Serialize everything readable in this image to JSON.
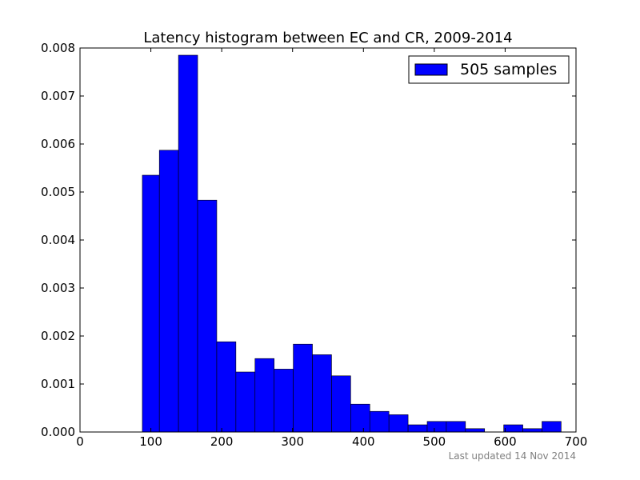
{
  "chart_data": {
    "type": "bar",
    "title": "Latency histogram between EC and CR, 2009-2014",
    "xlabel": "",
    "ylabel": "",
    "xlim": [
      0,
      700
    ],
    "ylim": [
      0,
      0.008
    ],
    "x_ticks": [
      "0",
      "100",
      "200",
      "300",
      "400",
      "500",
      "600",
      "700"
    ],
    "y_ticks": [
      "0.000",
      "0.001",
      "0.002",
      "0.003",
      "0.004",
      "0.005",
      "0.006",
      "0.007",
      "0.008"
    ],
    "grid": false,
    "legend_position": "top-right",
    "series": [
      {
        "name": "505 samples",
        "color": "#0000ff",
        "bins": [
          {
            "start": 88,
            "end": 112,
            "value": 0.00535
          },
          {
            "start": 112,
            "end": 139,
            "value": 0.00587
          },
          {
            "start": 139,
            "end": 166,
            "value": 0.00785
          },
          {
            "start": 166,
            "end": 193,
            "value": 0.00483
          },
          {
            "start": 193,
            "end": 220,
            "value": 0.00188
          },
          {
            "start": 220,
            "end": 247,
            "value": 0.00125
          },
          {
            "start": 247,
            "end": 274,
            "value": 0.00153
          },
          {
            "start": 274,
            "end": 301,
            "value": 0.00131
          },
          {
            "start": 301,
            "end": 328,
            "value": 0.00183
          },
          {
            "start": 328,
            "end": 355,
            "value": 0.00161
          },
          {
            "start": 355,
            "end": 382,
            "value": 0.00117
          },
          {
            "start": 382,
            "end": 409,
            "value": 0.00058
          },
          {
            "start": 409,
            "end": 436,
            "value": 0.00043
          },
          {
            "start": 436,
            "end": 463,
            "value": 0.00036
          },
          {
            "start": 463,
            "end": 490,
            "value": 0.00015
          },
          {
            "start": 490,
            "end": 517,
            "value": 0.00022
          },
          {
            "start": 517,
            "end": 544,
            "value": 0.00022
          },
          {
            "start": 544,
            "end": 571,
            "value": 7e-05
          },
          {
            "start": 571,
            "end": 598,
            "value": 0
          },
          {
            "start": 598,
            "end": 625,
            "value": 0.00015
          },
          {
            "start": 625,
            "end": 652,
            "value": 7e-05
          },
          {
            "start": 652,
            "end": 679,
            "value": 0.00022
          }
        ]
      }
    ]
  },
  "footnote": "Last updated 14 Nov 2014"
}
